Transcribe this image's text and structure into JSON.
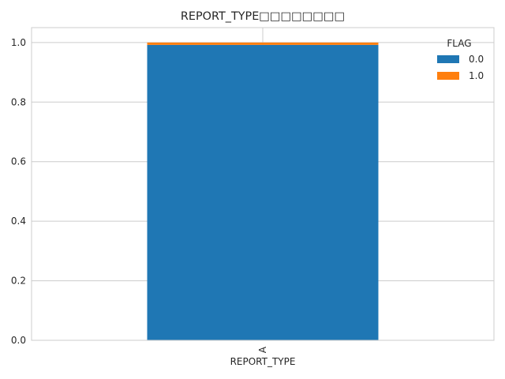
{
  "chart_data": {
    "type": "bar",
    "stacked": true,
    "title": "REPORT_TYPE□□□□□□□□",
    "xlabel": "REPORT_TYPE",
    "ylabel": "",
    "categories": [
      "A"
    ],
    "ylim": [
      0,
      1.05
    ],
    "yticks": [
      "0.0",
      "0.2",
      "0.4",
      "0.6",
      "0.8",
      "1.0"
    ],
    "grid": true,
    "legend": {
      "title": "FLAG",
      "position": "top-right"
    },
    "series": [
      {
        "name": "0.0",
        "values": [
          0.992
        ],
        "color": "#1f77b4"
      },
      {
        "name": "1.0",
        "values": [
          0.008
        ],
        "color": "#ff7f0e"
      }
    ]
  }
}
